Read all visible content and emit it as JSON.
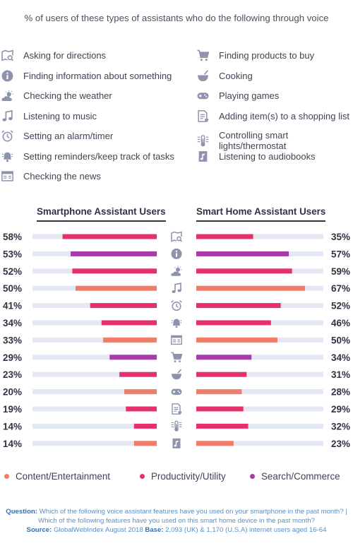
{
  "title": "% of users of these types of assistants who do the following through voice",
  "activities": [
    {
      "label": "Asking for directions",
      "icon": "map-search-icon",
      "category": "productivity"
    },
    {
      "label": "Finding information about something",
      "icon": "info-icon",
      "category": "search"
    },
    {
      "label": "Checking the weather",
      "icon": "weather-icon",
      "category": "productivity"
    },
    {
      "label": "Listening to music",
      "icon": "music-note-icon",
      "category": "content"
    },
    {
      "label": "Setting an alarm/timer",
      "icon": "alarm-clock-icon",
      "category": "productivity"
    },
    {
      "label": "Setting reminders/keep track of tasks",
      "icon": "bell-icon",
      "category": "productivity"
    },
    {
      "label": "Checking the news",
      "icon": "newspaper-icon",
      "category": "content"
    },
    {
      "label": "Finding products to buy",
      "icon": "shopping-cart-icon",
      "category": "search"
    },
    {
      "label": "Cooking",
      "icon": "cooking-pot-icon",
      "category": "productivity"
    },
    {
      "label": "Playing games",
      "icon": "gamepad-icon",
      "category": "content"
    },
    {
      "label": "Adding item(s) to a shopping list",
      "icon": "shopping-list-icon",
      "category": "productivity"
    },
    {
      "label": "Controlling smart lights/thermostat",
      "icon": "thermostat-icon",
      "category": "productivity"
    },
    {
      "label": "Listening to audiobooks",
      "icon": "audiobook-icon",
      "category": "content"
    }
  ],
  "chart_data": {
    "type": "bar",
    "categories": [
      "Asking for directions",
      "Finding information about something",
      "Checking the weather",
      "Listening to music",
      "Setting an alarm/timer",
      "Setting reminders/keep track of tasks",
      "Checking the news",
      "Finding products to buy",
      "Cooking",
      "Playing games",
      "Adding item(s) to a shopping list",
      "Controlling smart lights/thermostat",
      "Listening to audiobooks"
    ],
    "series": [
      {
        "name": "Smartphone Assistant Users",
        "values": [
          58,
          53,
          52,
          50,
          41,
          34,
          33,
          29,
          23,
          20,
          19,
          14,
          14
        ],
        "labels": [
          "58%",
          "53%",
          "52%",
          "50%",
          "41%",
          "34%",
          "33%",
          "29%",
          "23%",
          "20%",
          "19%",
          "14%",
          "14%"
        ]
      },
      {
        "name": "Smart Home Assistant Users",
        "values": [
          35,
          57,
          59,
          67,
          52,
          46,
          50,
          34,
          31,
          28,
          29,
          32,
          23
        ],
        "labels": [
          "35%",
          "57%",
          "59%",
          "67%",
          "52%",
          "46%",
          "50%",
          "34%",
          "31%",
          "28%",
          "29%",
          "32%",
          "23%"
        ]
      }
    ],
    "ylim": [
      0,
      100
    ],
    "legend": "bottom",
    "bar_categories": [
      "productivity",
      "search",
      "productivity",
      "content",
      "productivity",
      "productivity",
      "content",
      "search",
      "productivity",
      "content",
      "productivity",
      "productivity",
      "content"
    ]
  },
  "category_legend": [
    {
      "key": "content",
      "label": "Content/Entertainment",
      "color": "#f07d6a"
    },
    {
      "key": "productivity",
      "label": "Productivity/Utility",
      "color": "#e5306b"
    },
    {
      "key": "search",
      "label": "Search/Commerce",
      "color": "#a73ba8"
    }
  ],
  "colors": {
    "track": "#e4e8f5",
    "icon": "#8d93ad",
    "text": "#2f3344"
  },
  "footnote": {
    "question_label": "Question:",
    "question": "Which of the following voice assistant features have you used on your smartphone in the past month? | Which of the following features have you used on this smart home device in the past month?",
    "source_label": "Source:",
    "source": "GlobalWebIndex August 2018",
    "base_label": "Base:",
    "base": "2,093 (UK) & 1,170 (U.S.A) internet users aged 16-64"
  }
}
